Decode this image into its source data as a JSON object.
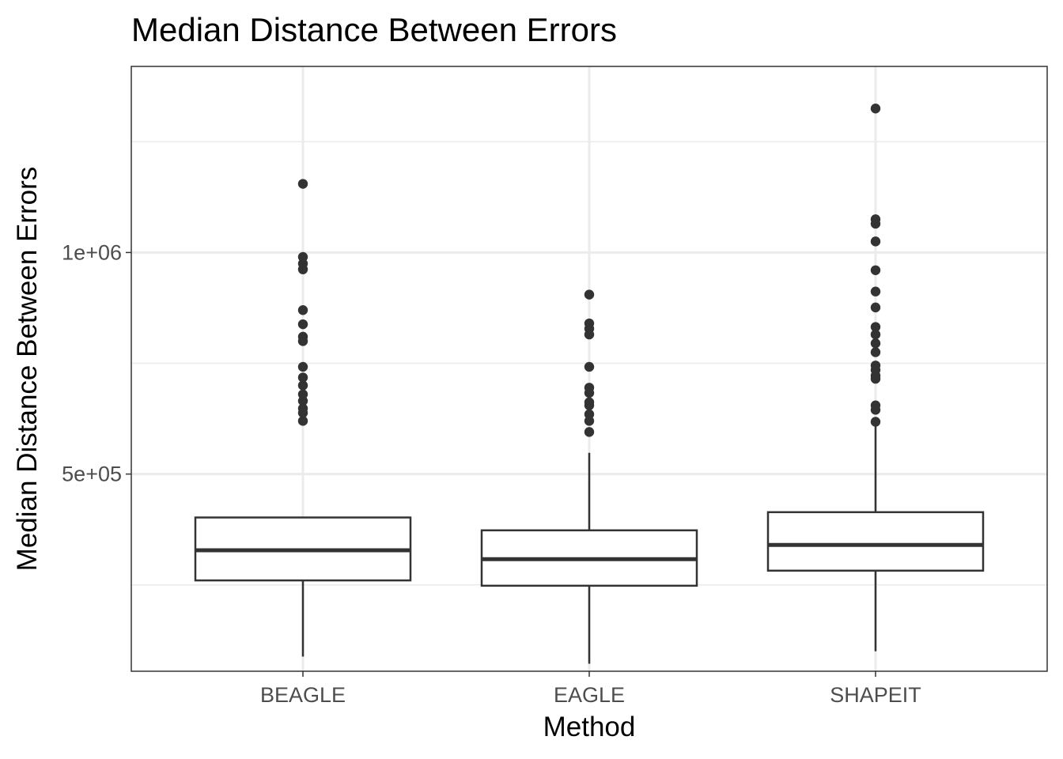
{
  "chart_data": {
    "type": "boxplot",
    "title": "Median Distance Between Errors",
    "xlabel": "Method",
    "ylabel": "Median Distance Between Errors",
    "categories": [
      "BEAGLE",
      "EAGLE",
      "SHAPEIT"
    ],
    "ylim": [
      55000,
      1420000
    ],
    "y_ticks": [
      {
        "value": 500000,
        "label": "5e+05"
      },
      {
        "value": 1000000,
        "label": "1e+06"
      }
    ],
    "y_minor_gridlines": [
      250000,
      750000,
      1250000
    ],
    "grid": true,
    "legend": "none",
    "boxes": [
      {
        "name": "BEAGLE",
        "whisker_low": 88000,
        "q1": 260000,
        "median": 328000,
        "q3": 402000,
        "whisker_high": 402000,
        "outliers": [
          1155000,
          990000,
          975000,
          962000,
          870000,
          838000,
          810000,
          800000,
          742000,
          718000,
          700000,
          680000,
          665000,
          648000,
          638000,
          620000
        ]
      },
      {
        "name": "EAGLE",
        "whisker_low": 72000,
        "q1": 248000,
        "median": 308000,
        "q3": 373000,
        "whisker_high": 548000,
        "outliers": [
          905000,
          840000,
          828000,
          815000,
          742000,
          695000,
          683000,
          662000,
          655000,
          635000,
          620000,
          595000
        ]
      },
      {
        "name": "SHAPEIT",
        "whisker_low": 100000,
        "q1": 282000,
        "median": 340000,
        "q3": 414000,
        "whisker_high": 614000,
        "outliers": [
          1325000,
          1075000,
          1065000,
          1025000,
          960000,
          912000,
          876000,
          832000,
          815000,
          795000,
          775000,
          745000,
          735000,
          722000,
          715000,
          655000,
          645000,
          618000
        ]
      }
    ]
  }
}
